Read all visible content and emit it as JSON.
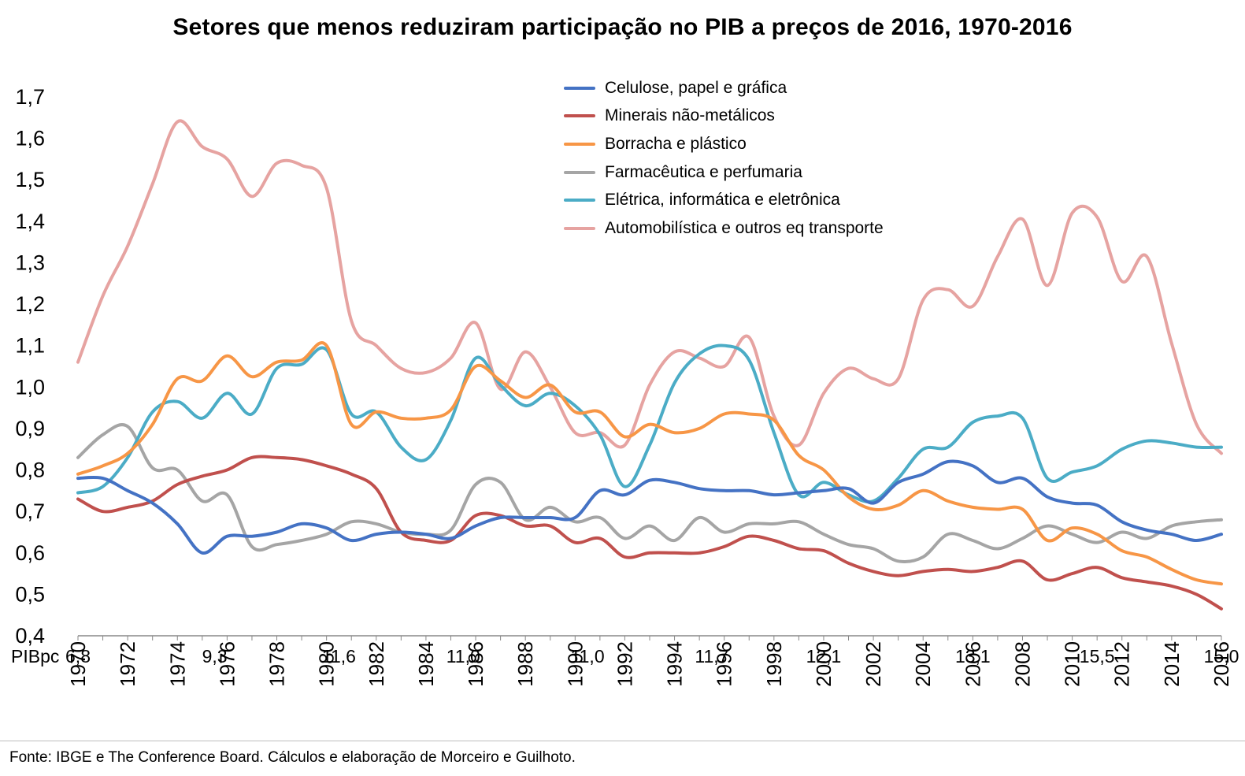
{
  "chart_data": {
    "type": "line",
    "title": "Setores que menos reduziram participação no PIB a preços de 2016, 1970-2016",
    "ylim": [
      0.4,
      1.7
    ],
    "yticks": [
      0.4,
      0.5,
      0.6,
      0.7,
      0.8,
      0.9,
      1.0,
      1.1,
      1.2,
      1.3,
      1.4,
      1.5,
      1.6,
      1.7
    ],
    "ytick_labels": [
      "0,4",
      "0,5",
      "0,6",
      "0,7",
      "0,8",
      "0,9",
      "1,0",
      "1,1",
      "1,2",
      "1,3",
      "1,4",
      "1,5",
      "1,6",
      "1,7"
    ],
    "x": [
      1970,
      1971,
      1972,
      1973,
      1974,
      1975,
      1976,
      1977,
      1978,
      1979,
      1980,
      1981,
      1982,
      1983,
      1984,
      1985,
      1986,
      1987,
      1988,
      1989,
      1990,
      1991,
      1992,
      1993,
      1994,
      1995,
      1996,
      1997,
      1998,
      1999,
      2000,
      2001,
      2002,
      2003,
      2004,
      2005,
      2006,
      2007,
      2008,
      2009,
      2010,
      2011,
      2012,
      2013,
      2014,
      2015,
      2016
    ],
    "xtick_labels": [
      "1970",
      "1972",
      "1974",
      "1976",
      "1978",
      "1980",
      "1982",
      "1984",
      "1986",
      "1988",
      "1990",
      "1992",
      "1994",
      "1996",
      "1998",
      "2000",
      "2002",
      "2004",
      "2006",
      "2008",
      "2010",
      "2012",
      "2014",
      "2016"
    ],
    "grid": false,
    "legend_position": "top-center",
    "series": [
      {
        "name": "Celulose, papel e gráfica",
        "color": "#4472C4",
        "values": [
          0.78,
          0.78,
          0.75,
          0.72,
          0.67,
          0.6,
          0.64,
          0.64,
          0.65,
          0.67,
          0.66,
          0.63,
          0.645,
          0.65,
          0.645,
          0.635,
          0.665,
          0.685,
          0.685,
          0.685,
          0.685,
          0.75,
          0.74,
          0.775,
          0.77,
          0.755,
          0.75,
          0.75,
          0.74,
          0.745,
          0.75,
          0.755,
          0.72,
          0.77,
          0.79,
          0.82,
          0.81,
          0.77,
          0.78,
          0.735,
          0.72,
          0.715,
          0.675,
          0.655,
          0.645,
          0.63,
          0.645
        ]
      },
      {
        "name": "Minerais não-metálicos",
        "color": "#C0504D",
        "values": [
          0.73,
          0.7,
          0.71,
          0.725,
          0.765,
          0.785,
          0.8,
          0.83,
          0.83,
          0.825,
          0.81,
          0.79,
          0.755,
          0.65,
          0.63,
          0.63,
          0.69,
          0.69,
          0.665,
          0.665,
          0.625,
          0.635,
          0.59,
          0.6,
          0.6,
          0.6,
          0.615,
          0.64,
          0.63,
          0.61,
          0.605,
          0.575,
          0.555,
          0.545,
          0.555,
          0.56,
          0.555,
          0.565,
          0.58,
          0.535,
          0.55,
          0.565,
          0.54,
          0.53,
          0.52,
          0.5,
          0.465
        ]
      },
      {
        "name": "Borracha e plástico",
        "color": "#F79646",
        "values": [
          0.79,
          0.81,
          0.84,
          0.91,
          1.02,
          1.015,
          1.075,
          1.025,
          1.06,
          1.065,
          1.1,
          0.91,
          0.94,
          0.925,
          0.925,
          0.945,
          1.05,
          1.015,
          0.975,
          1.005,
          0.94,
          0.94,
          0.88,
          0.91,
          0.89,
          0.9,
          0.935,
          0.935,
          0.92,
          0.835,
          0.8,
          0.735,
          0.705,
          0.715,
          0.75,
          0.725,
          0.71,
          0.705,
          0.705,
          0.63,
          0.66,
          0.645,
          0.605,
          0.59,
          0.56,
          0.535,
          0.525
        ]
      },
      {
        "name": "Farmacêutica e perfumaria",
        "color": "#A5A5A5",
        "values": [
          0.83,
          0.885,
          0.905,
          0.805,
          0.8,
          0.725,
          0.74,
          0.615,
          0.62,
          0.63,
          0.645,
          0.675,
          0.67,
          0.65,
          0.645,
          0.655,
          0.765,
          0.77,
          0.68,
          0.71,
          0.675,
          0.685,
          0.635,
          0.665,
          0.63,
          0.685,
          0.65,
          0.67,
          0.67,
          0.675,
          0.645,
          0.62,
          0.61,
          0.58,
          0.59,
          0.645,
          0.63,
          0.61,
          0.635,
          0.665,
          0.645,
          0.625,
          0.65,
          0.635,
          0.665,
          0.675,
          0.68
        ]
      },
      {
        "name": "Elétrica, informática e eletrônica",
        "color": "#4BACC6",
        "values": [
          0.745,
          0.76,
          0.83,
          0.94,
          0.965,
          0.925,
          0.985,
          0.935,
          1.045,
          1.055,
          1.09,
          0.935,
          0.94,
          0.855,
          0.825,
          0.92,
          1.07,
          1.005,
          0.955,
          0.985,
          0.955,
          0.885,
          0.76,
          0.86,
          1.01,
          1.08,
          1.1,
          1.065,
          0.89,
          0.74,
          0.77,
          0.74,
          0.725,
          0.78,
          0.85,
          0.855,
          0.915,
          0.93,
          0.925,
          0.78,
          0.795,
          0.81,
          0.85,
          0.87,
          0.865,
          0.855,
          0.855
        ]
      },
      {
        "name": "Automobilística e outros eq transporte",
        "color": "#E6A3A1",
        "values": [
          1.06,
          1.22,
          1.34,
          1.49,
          1.64,
          1.58,
          1.55,
          1.46,
          1.54,
          1.535,
          1.48,
          1.16,
          1.1,
          1.045,
          1.035,
          1.07,
          1.155,
          0.995,
          1.085,
          1.0,
          0.89,
          0.89,
          0.86,
          1.005,
          1.085,
          1.07,
          1.05,
          1.12,
          0.93,
          0.86,
          0.985,
          1.045,
          1.02,
          1.02,
          1.21,
          1.235,
          1.195,
          1.315,
          1.405,
          1.245,
          1.42,
          1.41,
          1.255,
          1.315,
          1.105,
          0.91,
          0.84
        ]
      }
    ],
    "annotations": {
      "row_label": "PIBpc",
      "values": [
        {
          "year": 1970,
          "text": "6,8"
        },
        {
          "year": 1975.5,
          "text": "9,3"
        },
        {
          "year": 1980.5,
          "text": "11,6"
        },
        {
          "year": 1985.5,
          "text": "11,0"
        },
        {
          "year": 1990.5,
          "text": "11,0"
        },
        {
          "year": 1995.5,
          "text": "11,7"
        },
        {
          "year": 2000,
          "text": "12,1"
        },
        {
          "year": 2006,
          "text": "13,1"
        },
        {
          "year": 2011,
          "text": "15,5"
        },
        {
          "year": 2016,
          "text": "15,0"
        }
      ]
    },
    "source": "Fonte: IBGE e The Conference Board. Cálculos e elaboração de Morceiro e Guilhoto."
  }
}
